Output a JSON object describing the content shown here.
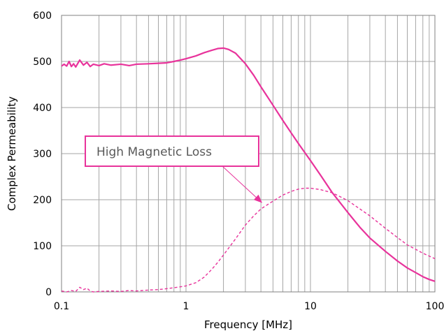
{
  "chart_data": {
    "type": "line",
    "x_scale": "log",
    "xlim": [
      0.1,
      100
    ],
    "ylim": [
      0,
      600
    ],
    "grid": true,
    "xlabel": "Frequency [MHz]",
    "ylabel": "Complex Permeability",
    "x_ticks": [
      {
        "value": 0.1,
        "label": "0.1"
      },
      {
        "value": 1,
        "label": "1"
      },
      {
        "value": 10,
        "label": "10"
      },
      {
        "value": 100,
        "label": "100"
      }
    ],
    "y_ticks": [
      {
        "value": 0,
        "label": "0"
      },
      {
        "value": 100,
        "label": "100"
      },
      {
        "value": 200,
        "label": "200"
      },
      {
        "value": 300,
        "label": "300"
      },
      {
        "value": 400,
        "label": "400"
      },
      {
        "value": 500,
        "label": "500"
      },
      {
        "value": 600,
        "label": "600"
      }
    ],
    "series": [
      {
        "style": "solid",
        "color": "#e8339b",
        "points": [
          [
            0.1,
            490
          ],
          [
            0.105,
            494
          ],
          [
            0.11,
            490
          ],
          [
            0.115,
            500
          ],
          [
            0.12,
            489
          ],
          [
            0.125,
            495
          ],
          [
            0.13,
            488
          ],
          [
            0.14,
            503
          ],
          [
            0.15,
            492
          ],
          [
            0.16,
            498
          ],
          [
            0.17,
            489
          ],
          [
            0.18,
            494
          ],
          [
            0.2,
            491
          ],
          [
            0.22,
            495
          ],
          [
            0.25,
            492
          ],
          [
            0.3,
            494
          ],
          [
            0.35,
            491
          ],
          [
            0.4,
            494
          ],
          [
            0.5,
            495
          ],
          [
            0.6,
            496
          ],
          [
            0.7,
            497
          ],
          [
            0.8,
            500
          ],
          [
            0.9,
            503
          ],
          [
            1.0,
            506
          ],
          [
            1.2,
            512
          ],
          [
            1.4,
            519
          ],
          [
            1.6,
            524
          ],
          [
            1.8,
            528
          ],
          [
            2.0,
            529
          ],
          [
            2.2,
            526
          ],
          [
            2.5,
            518
          ],
          [
            3.0,
            495
          ],
          [
            3.5,
            470
          ],
          [
            4.0,
            445
          ],
          [
            5.0,
            405
          ],
          [
            6.0,
            372
          ],
          [
            7.0,
            345
          ],
          [
            8.0,
            322
          ],
          [
            10.0,
            285
          ],
          [
            12.0,
            254
          ],
          [
            15.0,
            215
          ],
          [
            20.0,
            172
          ],
          [
            25.0,
            140
          ],
          [
            30.0,
            117
          ],
          [
            40.0,
            88
          ],
          [
            50.0,
            67
          ],
          [
            60.0,
            52
          ],
          [
            70.0,
            42
          ],
          [
            80.0,
            33
          ],
          [
            90.0,
            27
          ],
          [
            100.0,
            23
          ]
        ]
      },
      {
        "style": "dashed",
        "color": "#e8339b",
        "points": [
          [
            0.1,
            2
          ],
          [
            0.11,
            0
          ],
          [
            0.12,
            3
          ],
          [
            0.13,
            1
          ],
          [
            0.14,
            10
          ],
          [
            0.15,
            5
          ],
          [
            0.16,
            8
          ],
          [
            0.17,
            2
          ],
          [
            0.18,
            0
          ],
          [
            0.2,
            1
          ],
          [
            0.25,
            2
          ],
          [
            0.3,
            1
          ],
          [
            0.35,
            3
          ],
          [
            0.4,
            2
          ],
          [
            0.5,
            4
          ],
          [
            0.6,
            5
          ],
          [
            0.7,
            7
          ],
          [
            0.8,
            9
          ],
          [
            0.9,
            11
          ],
          [
            1.0,
            13
          ],
          [
            1.2,
            20
          ],
          [
            1.4,
            32
          ],
          [
            1.6,
            48
          ],
          [
            1.8,
            64
          ],
          [
            2.0,
            80
          ],
          [
            2.5,
            115
          ],
          [
            3.0,
            145
          ],
          [
            3.5,
            165
          ],
          [
            4.0,
            180
          ],
          [
            5.0,
            197
          ],
          [
            6.0,
            210
          ],
          [
            7.0,
            218
          ],
          [
            8.0,
            223
          ],
          [
            9.0,
            225
          ],
          [
            10.0,
            225
          ],
          [
            12.0,
            222
          ],
          [
            15.0,
            215
          ],
          [
            20.0,
            198
          ],
          [
            30.0,
            165
          ],
          [
            40.0,
            138
          ],
          [
            50.0,
            118
          ],
          [
            60.0,
            102
          ],
          [
            80.0,
            84
          ],
          [
            100.0,
            72
          ]
        ]
      }
    ],
    "annotations": [
      {
        "text": "High Magnetic Loss",
        "box_border_color": "#e8339b",
        "arrow_to": [
          4.1,
          193
        ]
      }
    ]
  }
}
